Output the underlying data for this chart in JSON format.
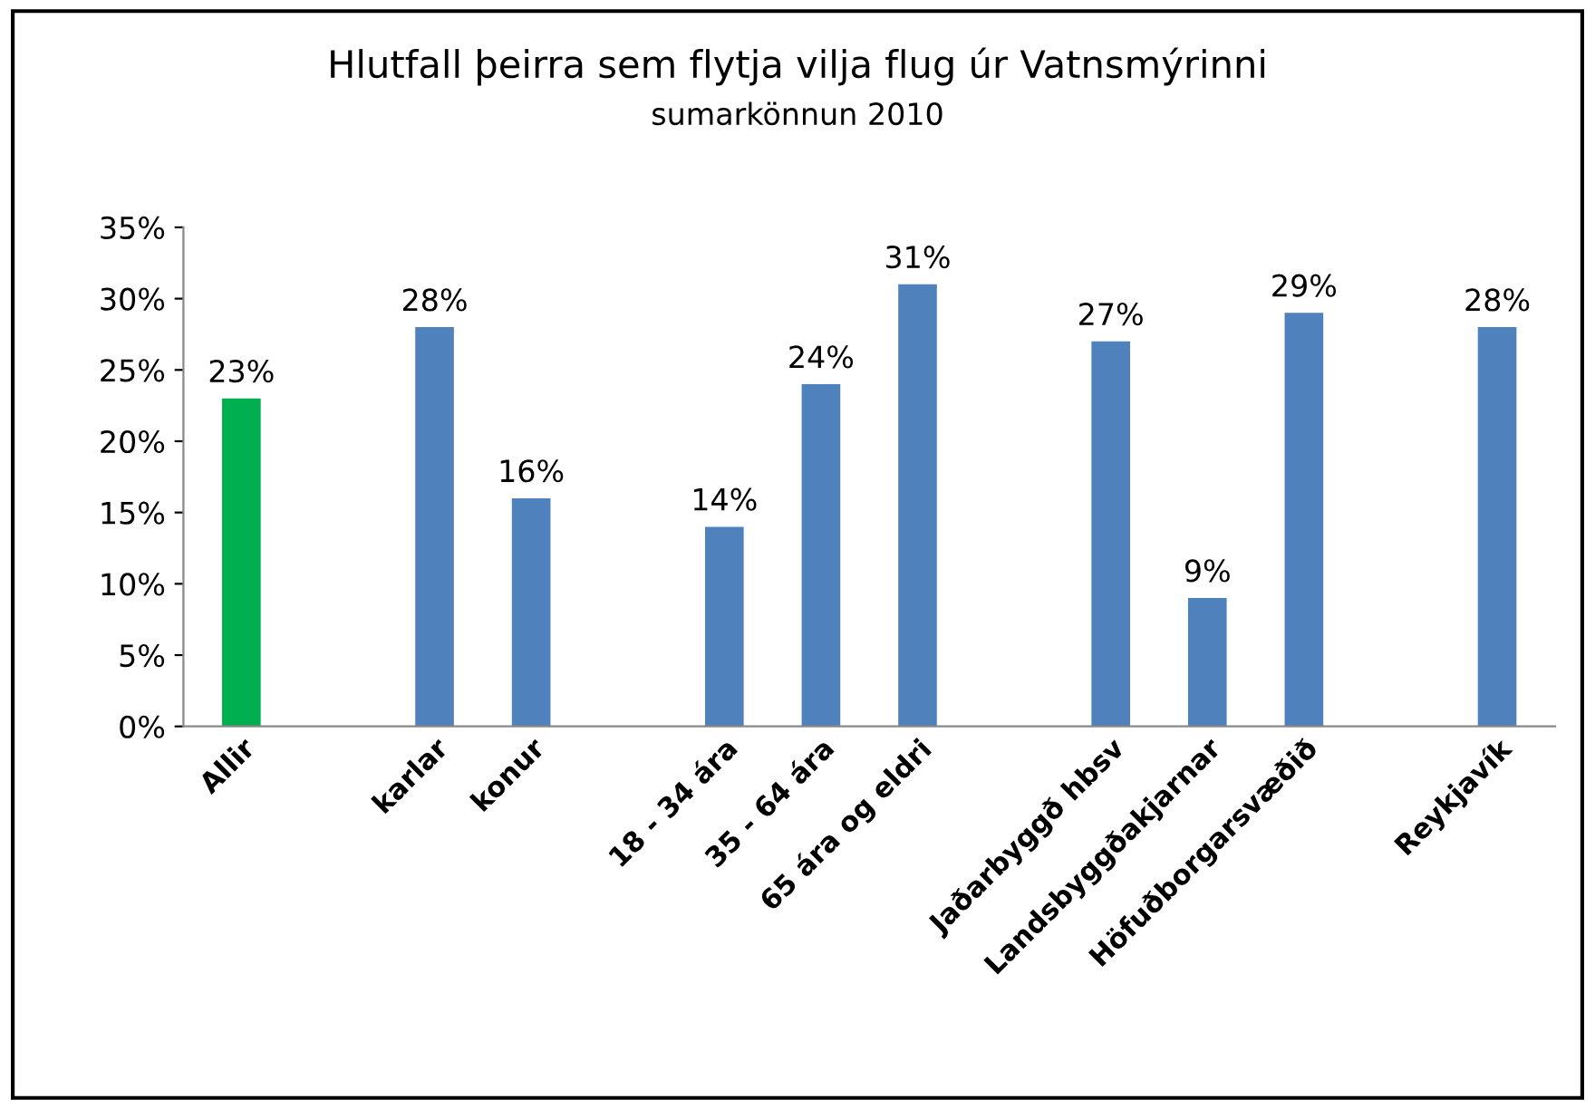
{
  "chart_data": {
    "type": "bar",
    "title": "Hlutfall þeirra sem flytja vilja flug úr Vatnsmýrinni",
    "subtitle": "sumarkönnun 2010",
    "categories": [
      "Allir",
      null,
      "karlar",
      "konur",
      null,
      "18 - 34 ára",
      "35 - 64 ára",
      "65 ára og eldri",
      null,
      "Jaðarbyggð hbsv",
      "Landsbyggðakjarnar",
      "Höfuðborgarsvæðið",
      null,
      "Reykjavík"
    ],
    "values": [
      23,
      null,
      28,
      16,
      null,
      14,
      24,
      31,
      null,
      27,
      9,
      29,
      null,
      28
    ],
    "colors": [
      "#00b050",
      "#4f81bd",
      "#4f81bd",
      "#4f81bd",
      "#4f81bd",
      "#4f81bd",
      "#4f81bd",
      "#4f81bd",
      "#4f81bd",
      "#4f81bd",
      "#4f81bd",
      "#4f81bd",
      "#4f81bd",
      "#4f81bd"
    ],
    "value_labels": [
      "23%",
      null,
      "28%",
      "16%",
      null,
      "14%",
      "24%",
      "31%",
      null,
      "27%",
      "9%",
      "29%",
      null,
      "28%"
    ],
    "ylim": [
      0,
      35
    ],
    "yticks": [
      {
        "value": 0,
        "label": "0%"
      },
      {
        "value": 5,
        "label": "5%"
      },
      {
        "value": 10,
        "label": "10%"
      },
      {
        "value": 15,
        "label": "15%"
      },
      {
        "value": 20,
        "label": "20%"
      },
      {
        "value": 25,
        "label": "25%"
      },
      {
        "value": 30,
        "label": "30%"
      },
      {
        "value": 35,
        "label": "35%"
      }
    ],
    "grid": false,
    "legend": false
  }
}
